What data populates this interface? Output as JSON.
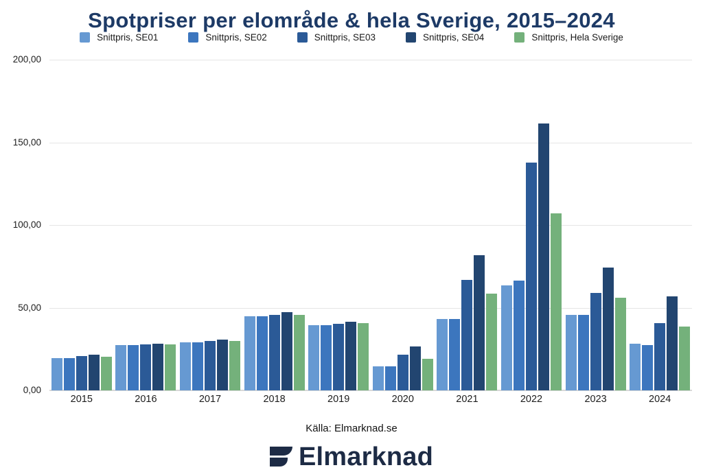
{
  "title": "Spotpriser per elområde & hela Sverige, 2015–2024",
  "source": "Källa: Elmarknad.se",
  "logo_text": "Elmarknad",
  "colors": {
    "title": "#1d3a66",
    "gridline": "#e5e5e5",
    "baseline": "#d8d8d8",
    "logo": "#1d2b45"
  },
  "chart_data": {
    "type": "bar",
    "categories": [
      "2015",
      "2016",
      "2017",
      "2018",
      "2019",
      "2020",
      "2021",
      "2022",
      "2023",
      "2024"
    ],
    "series": [
      {
        "name": "Snittpris, SE01",
        "color": "#6699d2",
        "values": [
          19.4,
          27.4,
          29.2,
          44.9,
          39.5,
          14.5,
          43.0,
          63.4,
          45.6,
          28.2
        ]
      },
      {
        "name": "Snittpris, SE02",
        "color": "#3c76be",
        "values": [
          19.4,
          27.4,
          29.2,
          45.0,
          39.5,
          14.5,
          43.0,
          66.3,
          45.6,
          27.4
        ]
      },
      {
        "name": "Snittpris, SE03",
        "color": "#2b5a97",
        "values": [
          20.6,
          27.8,
          29.8,
          45.6,
          40.4,
          21.5,
          66.9,
          137.6,
          58.8,
          40.5
        ]
      },
      {
        "name": "Snittpris, SE04",
        "color": "#224570",
        "values": [
          21.4,
          28.2,
          30.7,
          47.4,
          41.7,
          26.4,
          81.7,
          161.5,
          74.2,
          56.8
        ]
      },
      {
        "name": "Snittpris, Hela Sverige",
        "color": "#74b17b",
        "values": [
          20.3,
          27.7,
          29.7,
          45.8,
          40.6,
          19.3,
          58.5,
          107.2,
          55.9,
          38.5
        ]
      }
    ],
    "ylim": [
      0,
      200
    ],
    "yticks": [
      {
        "value": 0,
        "label": "0,00"
      },
      {
        "value": 50,
        "label": "50,00"
      },
      {
        "value": 100,
        "label": "100,00"
      },
      {
        "value": 150,
        "label": "150,00"
      },
      {
        "value": 200,
        "label": "200,00"
      }
    ],
    "grid": true,
    "legend_position": "top",
    "title_clipped_at_top": true
  }
}
